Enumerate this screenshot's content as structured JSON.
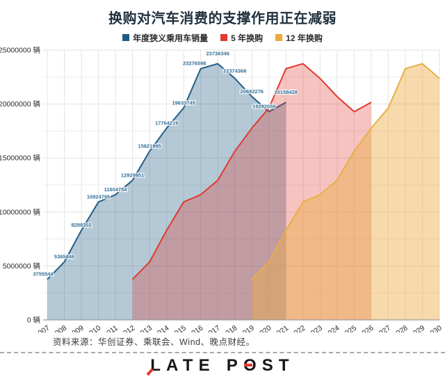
{
  "title": "换购对汽车消费的支撑作用正在减弱",
  "legend": [
    {
      "label": "年度狭义乘用车销量",
      "color": "#1d5b83"
    },
    {
      "label": "5 年换购",
      "color": "#e0392e"
    },
    {
      "label": "12 年换购",
      "color": "#f0a93b"
    }
  ],
  "chart_data": {
    "type": "area",
    "x_min": 2007,
    "x_max": 2030,
    "ylim": [
      0,
      25000000
    ],
    "y_tick_step": 5000000,
    "grid_step": 2500000,
    "unit": "辆",
    "grid": "on",
    "legend_position": "top",
    "series": [
      {
        "name": "年度狭义乘用车销量",
        "start_year": 2007,
        "color": "#225e86",
        "fill": "rgba(34,94,134,0.34)",
        "show_labels": true,
        "values": [
          3755544,
          5365848,
          8298302,
          10924795,
          11604754,
          12929951,
          15621985,
          17764219,
          19633745,
          23276598,
          23738346,
          22374368,
          20692276,
          19292059,
          20158428
        ]
      },
      {
        "name": "5 年换购",
        "start_year": 2012,
        "color": "#e0392e",
        "fill": "rgba(224,57,46,0.30)",
        "show_labels": false,
        "values": [
          3755544,
          5365848,
          8298302,
          10924795,
          11604754,
          12929951,
          15621985,
          17764219,
          19633745,
          23276598,
          23738346,
          22374368,
          20692276,
          19292059,
          20158428
        ]
      },
      {
        "name": "12 年换购",
        "start_year": 2019,
        "color": "#e9ae45",
        "fill": "rgba(238,173,69,0.45)",
        "show_labels": false,
        "values": [
          3755544,
          5365848,
          8298302,
          10924795,
          11604754,
          12929951,
          15621985,
          17764219,
          19633745,
          23276598,
          23738346,
          22374368
        ]
      }
    ],
    "label_color": "#336f99",
    "title": "换购对汽车消费的支撑作用正在减弱"
  },
  "footer": {
    "source": "资料来源：华创证券、乘联会、Wind、晚点财经。"
  },
  "logo": {
    "word1": "LATE",
    "p": "P",
    "o": "O",
    "st": "ST"
  }
}
